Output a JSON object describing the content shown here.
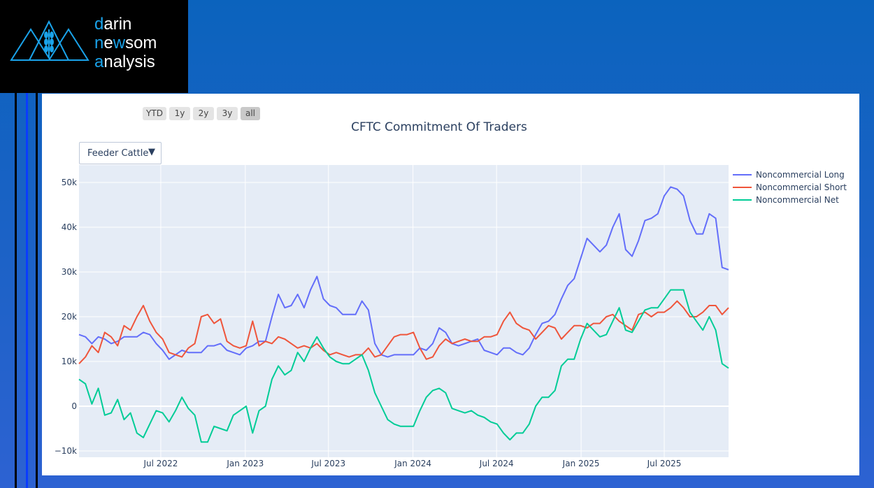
{
  "logo": {
    "line1_accent": "d",
    "line1_rest": "arin",
    "line2_a": "n",
    "line2_b": "e",
    "line2_c": "w",
    "line2_d": "som",
    "line3_accent": "a",
    "line3_rest": "nalysis",
    "accent_color": "#1aa3ea"
  },
  "range_selector": [
    {
      "label": "YTD",
      "active": false
    },
    {
      "label": "1y",
      "active": false
    },
    {
      "label": "2y",
      "active": false
    },
    {
      "label": "3y",
      "active": false
    },
    {
      "label": "all",
      "active": true
    }
  ],
  "dropdown": {
    "selected": "Feeder Cattle"
  },
  "chart_data": {
    "type": "line",
    "title": "CFTC Commitment Of Traders",
    "xlabel": "",
    "ylabel": "",
    "x_start": "2022-01-04",
    "x_interval_days": 14,
    "x_ticks": [
      "Jul 2022",
      "Jan 2023",
      "Jul 2023",
      "Jan 2024",
      "Jul 2024",
      "Jan 2025",
      "Jul 2025"
    ],
    "x_tick_dates": [
      "2022-07-01",
      "2023-01-01",
      "2023-07-01",
      "2024-01-01",
      "2024-07-01",
      "2025-01-01",
      "2025-07-01"
    ],
    "y_ticks": [
      -10000,
      0,
      10000,
      20000,
      30000,
      40000,
      50000
    ],
    "y_tick_labels": [
      "−10k",
      "0",
      "10k",
      "20k",
      "30k",
      "40k",
      "50k"
    ],
    "ylim": [
      -11400,
      53900
    ],
    "grid": true,
    "legend_position": "top-right-outside",
    "series": [
      {
        "name": "Noncommercial Long",
        "color": "#636efa",
        "values": [
          16,
          15.5,
          14,
          15.5,
          15,
          14,
          14.5,
          15.5,
          15.5,
          15.5,
          16.5,
          16,
          14,
          12.5,
          10.5,
          11.5,
          12.5,
          12,
          12,
          12,
          13.5,
          13.5,
          14,
          12.5,
          12,
          11.5,
          13,
          13.5,
          14.5,
          14.5,
          20,
          25,
          22,
          22.5,
          25,
          22,
          26,
          29,
          24,
          22.5,
          22,
          20.5,
          20.5,
          20.5,
          23.5,
          21.5,
          14,
          11.5,
          11,
          11.5,
          11.5,
          11.5,
          11.5,
          13,
          12.5,
          14,
          17.5,
          16.5,
          14,
          13.5,
          14,
          14.5,
          15,
          12.5,
          12,
          11.5,
          13,
          13,
          12,
          11.5,
          13,
          16,
          18.5,
          19,
          20.5,
          24,
          27,
          28.5,
          33,
          37.5,
          36,
          34.5,
          36,
          40,
          43,
          35,
          33.5,
          37,
          41.5,
          42,
          43,
          47,
          49,
          48.5,
          47,
          41.5,
          38.5,
          38.5,
          43,
          42,
          31,
          30.5
        ]
      },
      {
        "name": "Noncommercial Short",
        "color": "#ef553b",
        "values": [
          9.5,
          11,
          13.5,
          12,
          16.5,
          15.5,
          13.5,
          18,
          17,
          20,
          22.5,
          19,
          16.5,
          15,
          12,
          11.5,
          11,
          13,
          14,
          20,
          20.5,
          18.5,
          19.5,
          14.5,
          13.5,
          13,
          13.5,
          19,
          13.5,
          14.5,
          14,
          15.5,
          15,
          14,
          13,
          13.5,
          13,
          14,
          12.5,
          11.5,
          12,
          11.5,
          11,
          11.5,
          11.5,
          13,
          11,
          11.5,
          13.5,
          15.5,
          16,
          16,
          16.5,
          13,
          10.5,
          11,
          13.5,
          15,
          14,
          14.5,
          15,
          14.5,
          14.5,
          15.5,
          15.5,
          16,
          19,
          21,
          18.5,
          17.5,
          17,
          15,
          16.5,
          18,
          17.5,
          15,
          16.5,
          18,
          18,
          17.5,
          18.5,
          18.5,
          20,
          20.5,
          19,
          18,
          17,
          20.5,
          21,
          20,
          21,
          21,
          22,
          23.5,
          22,
          20,
          20,
          21,
          22.5,
          22.5,
          20.5,
          22
        ]
      },
      {
        "name": "Noncommercial Net",
        "color": "#00cc96",
        "values": [
          6,
          5,
          0.5,
          4,
          -2,
          -1.5,
          1.5,
          -3,
          -1.5,
          -6,
          -7,
          -4,
          -1,
          -1.5,
          -3.5,
          -1,
          2,
          -0.5,
          -2,
          -8,
          -8,
          -4.5,
          -5,
          -5.5,
          -2,
          -1,
          0,
          -6,
          -1,
          0,
          6,
          9,
          7,
          8,
          12,
          10,
          13,
          15.5,
          13,
          11,
          10,
          9.5,
          9.5,
          10.5,
          11.5,
          8,
          3,
          0,
          -3,
          -4,
          -4.5,
          -4.5,
          -4.5,
          -1,
          2,
          3.5,
          4,
          3,
          -0.5,
          -1,
          -1.5,
          -1,
          -2,
          -2.5,
          -3.5,
          -4,
          -6,
          -7.5,
          -6,
          -6,
          -4,
          0,
          2,
          2,
          3.5,
          9,
          10.5,
          10.5,
          15,
          18.5,
          17,
          15.5,
          16,
          19,
          22,
          17,
          16.5,
          19,
          21.5,
          22,
          22,
          24,
          26,
          26,
          26,
          21,
          19,
          17,
          20,
          17,
          9.5,
          8.5
        ]
      }
    ],
    "value_unit": "thousands"
  }
}
